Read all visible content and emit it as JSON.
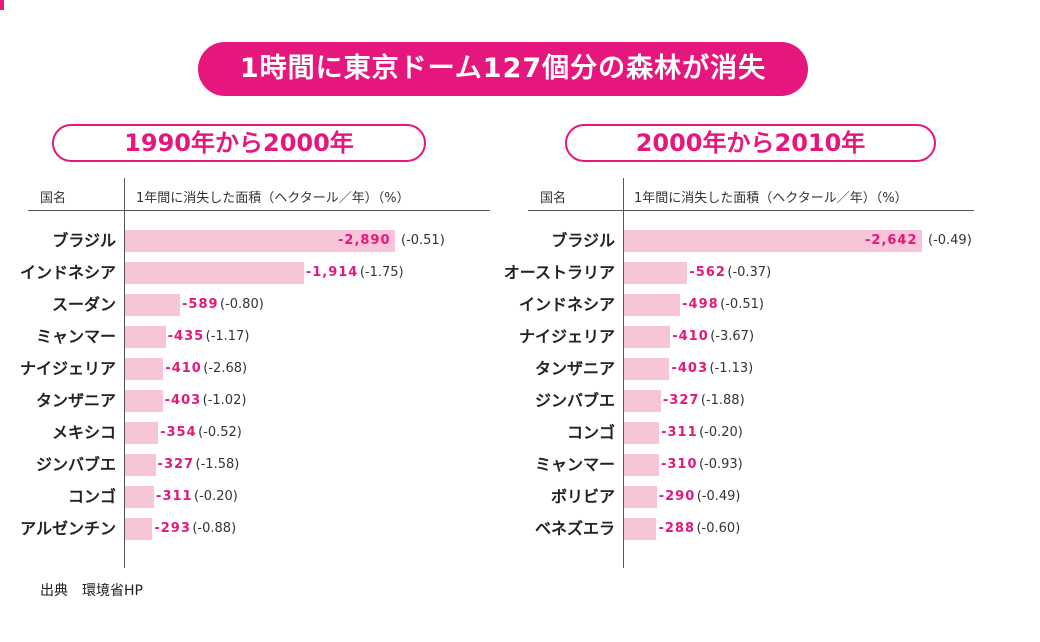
{
  "title": "1時間に東京ドーム127個分の森林が消失",
  "source": "出典　環境省HP",
  "accent_color": "#e5177d",
  "bar_color": "#f8c4d8",
  "chart_data": [
    {
      "type": "bar",
      "orientation": "horizontal",
      "title": "1990年から2000年",
      "category_header": "国名",
      "value_header": "1年間に消失した面積（ヘクタール／年）（%）",
      "categories": [
        "ブラジル",
        "インドネシア",
        "スーダン",
        "ミャンマー",
        "ナイジェリア",
        "タンザニア",
        "メキシコ",
        "ジンバブエ",
        "コンゴ",
        "アルゼンチン"
      ],
      "value_labels": [
        "-2,890",
        "-1,914",
        "-589",
        "-435",
        "-410",
        "-403",
        "-354",
        "-327",
        "-311",
        "-293"
      ],
      "values": [
        2890,
        1914,
        589,
        435,
        410,
        403,
        354,
        327,
        311,
        293
      ],
      "percent_labels": [
        "(-0.51)",
        "(-1.75)",
        "(-0.80)",
        "(-1.17)",
        "(-2.68)",
        "(-1.02)",
        "(-0.52)",
        "(-1.58)",
        "(-0.20)",
        "(-0.88)"
      ]
    },
    {
      "type": "bar",
      "orientation": "horizontal",
      "title": "2000年から2010年",
      "category_header": "国名",
      "value_header": "1年間に消失した面積（ヘクタール／年）（%）",
      "categories": [
        "ブラジル",
        "オーストラリア",
        "インドネシア",
        "ナイジェリア",
        "タンザニア",
        "ジンバブエ",
        "コンゴ",
        "ミャンマー",
        "ボリビア",
        "ベネズエラ"
      ],
      "value_labels": [
        "-2,642",
        "-562",
        "-498",
        "-410",
        "-403",
        "-327",
        "-311",
        "-310",
        "-290",
        "-288"
      ],
      "values": [
        2642,
        562,
        498,
        410,
        403,
        327,
        311,
        310,
        290,
        288
      ],
      "percent_labels": [
        "(-0.49)",
        "(-0.37)",
        "(-0.51)",
        "(-3.67)",
        "(-1.13)",
        "(-1.88)",
        "(-0.20)",
        "(-0.93)",
        "(-0.49)",
        "(-0.60)"
      ]
    }
  ]
}
